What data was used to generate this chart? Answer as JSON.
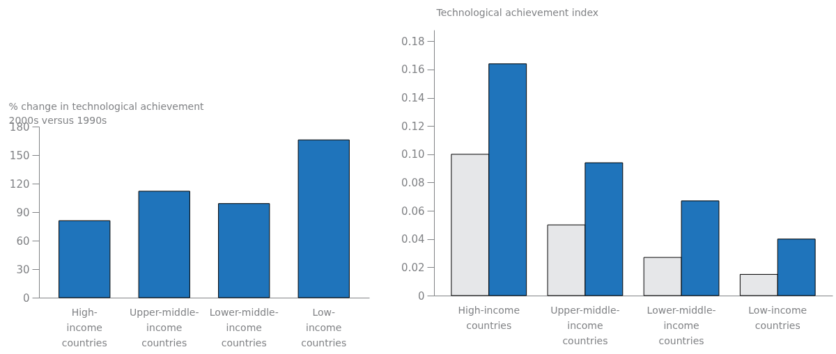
{
  "chart_data": [
    {
      "type": "bar",
      "ylabel": "% change in technological achievement",
      "subtitle": "2000s versus 1990s",
      "categories": [
        "High-income countries",
        "Upper-middle-income countries",
        "Lower-middle-income countries",
        "Low-income countries"
      ],
      "values": [
        81,
        112,
        99,
        166
      ],
      "color": "#1f74bb",
      "ylim": [
        0,
        180
      ],
      "yticks": [
        0,
        30,
        60,
        90,
        120,
        150,
        180
      ],
      "grid": false,
      "legend": false
    },
    {
      "type": "bar",
      "ylabel": "Technological achievement index",
      "categories": [
        "High-income countries",
        "Upper-middle-income countries",
        "Lower-middle-income countries",
        "Low-income countries"
      ],
      "series": [
        {
          "color": "#e6e7e9",
          "values": [
            0.1,
            0.05,
            0.027,
            0.015
          ]
        },
        {
          "color": "#1f74bb",
          "values": [
            0.164,
            0.094,
            0.067,
            0.04
          ]
        }
      ],
      "ylim": [
        0,
        0.188
      ],
      "yticks": [
        0,
        {
          "value": 0.02,
          "label": "0.02"
        },
        {
          "value": 0.04,
          "label": "0.04"
        },
        {
          "value": 0.06,
          "label": "0.06"
        },
        {
          "value": 0.08,
          "label": "0.08"
        },
        {
          "value": 0.1,
          "label": "0.10"
        },
        {
          "value": 0.12,
          "label": "0.12"
        },
        {
          "value": 0.14,
          "label": "0.14"
        },
        {
          "value": 0.16,
          "label": "0.16"
        },
        {
          "value": 0.18,
          "label": "0.18"
        }
      ],
      "grid": false,
      "legend": false
    }
  ]
}
